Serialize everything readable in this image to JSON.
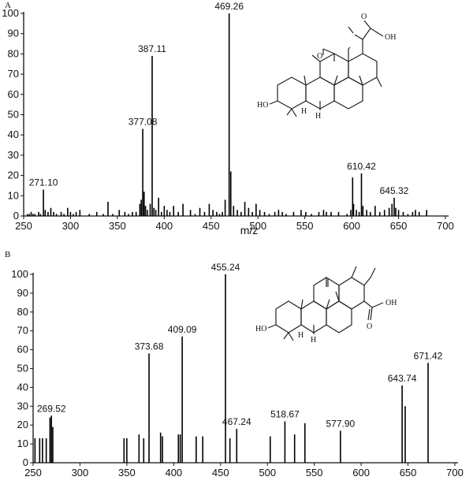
{
  "chart_data": [
    {
      "type": "bar",
      "panel_label": "A",
      "xlabel": "m/z",
      "ylabel": "",
      "xlim": [
        250,
        700
      ],
      "ylim": [
        0,
        100
      ],
      "x_ticks": [
        250,
        300,
        350,
        400,
        450,
        500,
        550,
        600,
        650,
        700
      ],
      "y_ticks": [
        0,
        10,
        20,
        30,
        40,
        50,
        60,
        70,
        80,
        90,
        100
      ],
      "grid": false,
      "x": [
        254,
        256,
        258,
        260,
        262,
        266,
        268,
        271.1,
        273,
        276,
        279,
        282,
        285,
        290,
        293,
        297,
        300,
        303,
        306,
        310,
        320,
        328,
        335,
        340,
        345,
        352,
        358,
        362,
        366,
        370,
        374,
        375.5,
        377.08,
        378.5,
        380,
        382,
        385,
        387.11,
        389,
        391,
        394,
        397,
        400,
        403,
        406,
        410,
        415,
        420,
        428,
        433,
        438,
        443,
        448,
        452,
        456,
        459,
        462,
        465,
        469.26,
        471,
        474,
        478,
        482,
        486,
        490,
        494,
        498,
        502,
        507,
        512,
        518,
        522,
        526,
        530,
        538,
        546,
        551,
        557,
        565,
        570,
        573,
        578,
        586,
        595,
        599,
        601,
        602,
        605,
        608,
        610.42,
        612,
        616,
        620,
        625,
        630,
        635,
        640,
        643,
        645.32,
        647,
        650,
        655,
        660,
        665,
        668,
        672,
        680
      ],
      "values": [
        1,
        1,
        2,
        1,
        1,
        2,
        1,
        13,
        3,
        2,
        4,
        2,
        1,
        2,
        1,
        4,
        2,
        1,
        2,
        3,
        1,
        2,
        1,
        7,
        1,
        3,
        2,
        1,
        2,
        2,
        6,
        8,
        43,
        12,
        5,
        3,
        6,
        79,
        4,
        3,
        9,
        2,
        5,
        3,
        2,
        5,
        2,
        6,
        3,
        1,
        4,
        2,
        6,
        3,
        2,
        1,
        2,
        8,
        100,
        22,
        5,
        3,
        2,
        7,
        4,
        2,
        6,
        3,
        2,
        1,
        2,
        3,
        2,
        1,
        2,
        3,
        2,
        1,
        2,
        3,
        2,
        2,
        2,
        1,
        3,
        19,
        6,
        3,
        2,
        21,
        5,
        3,
        2,
        5,
        2,
        3,
        4,
        6,
        9,
        4,
        3,
        2,
        1,
        2,
        3,
        2,
        3
      ],
      "peak_labels": [
        {
          "x": 271.1,
          "y": 13,
          "text": "271.10"
        },
        {
          "x": 377.08,
          "y": 43,
          "text": "377.08"
        },
        {
          "x": 387.11,
          "y": 79,
          "text": "387.11"
        },
        {
          "x": 469.26,
          "y": 100,
          "text": "469.26"
        },
        {
          "x": 610.42,
          "y": 21,
          "text": "610.42"
        },
        {
          "x": 645.32,
          "y": 9,
          "text": "645.32"
        }
      ],
      "structure_labels": {
        "carbonyl": "O",
        "acid_o": "O",
        "acid_oh": "OH",
        "hydroxyl": "HO",
        "h1": "H",
        "h2": "H"
      }
    },
    {
      "type": "bar",
      "panel_label": "B",
      "xlabel": "",
      "ylabel": "",
      "xlim": [
        250,
        700
      ],
      "ylim": [
        0,
        100
      ],
      "x_ticks": [
        250,
        300,
        350,
        400,
        450,
        500,
        550,
        600,
        650,
        700
      ],
      "y_ticks": [
        0,
        10,
        20,
        30,
        40,
        50,
        60,
        70,
        80,
        90,
        100
      ],
      "grid": false,
      "x": [
        252,
        257,
        260,
        264,
        268,
        269.52,
        271,
        347,
        350,
        363,
        368,
        373.68,
        386,
        388,
        405,
        407,
        409.09,
        424,
        431,
        455.24,
        460,
        467.24,
        503,
        518.67,
        529,
        540,
        577.9,
        643.74,
        647,
        671.42
      ],
      "values": [
        13,
        13,
        13,
        13,
        24,
        25,
        19,
        13,
        13,
        15,
        13,
        58,
        16,
        14,
        15,
        15,
        67,
        14,
        14,
        100,
        13,
        18,
        14,
        22,
        15,
        21,
        17,
        41,
        30,
        53
      ],
      "peak_labels": [
        {
          "x": 269.52,
          "y": 25,
          "text": "269.52"
        },
        {
          "x": 373.68,
          "y": 58,
          "text": "373.68"
        },
        {
          "x": 409.09,
          "y": 67,
          "text": "409.09"
        },
        {
          "x": 455.24,
          "y": 100,
          "text": "455.24"
        },
        {
          "x": 467.24,
          "y": 18,
          "text": "467.24"
        },
        {
          "x": 518.67,
          "y": 22,
          "text": "518.67"
        },
        {
          "x": 577.9,
          "y": 17,
          "text": "577.90"
        },
        {
          "x": 643.74,
          "y": 41,
          "text": "643.74"
        },
        {
          "x": 671.42,
          "y": 53,
          "text": "671.42"
        }
      ],
      "structure_labels": {
        "acid_oh": "OH",
        "acid_o": "O",
        "hydroxyl": "HO",
        "h1": "H",
        "h2": "H"
      }
    }
  ]
}
